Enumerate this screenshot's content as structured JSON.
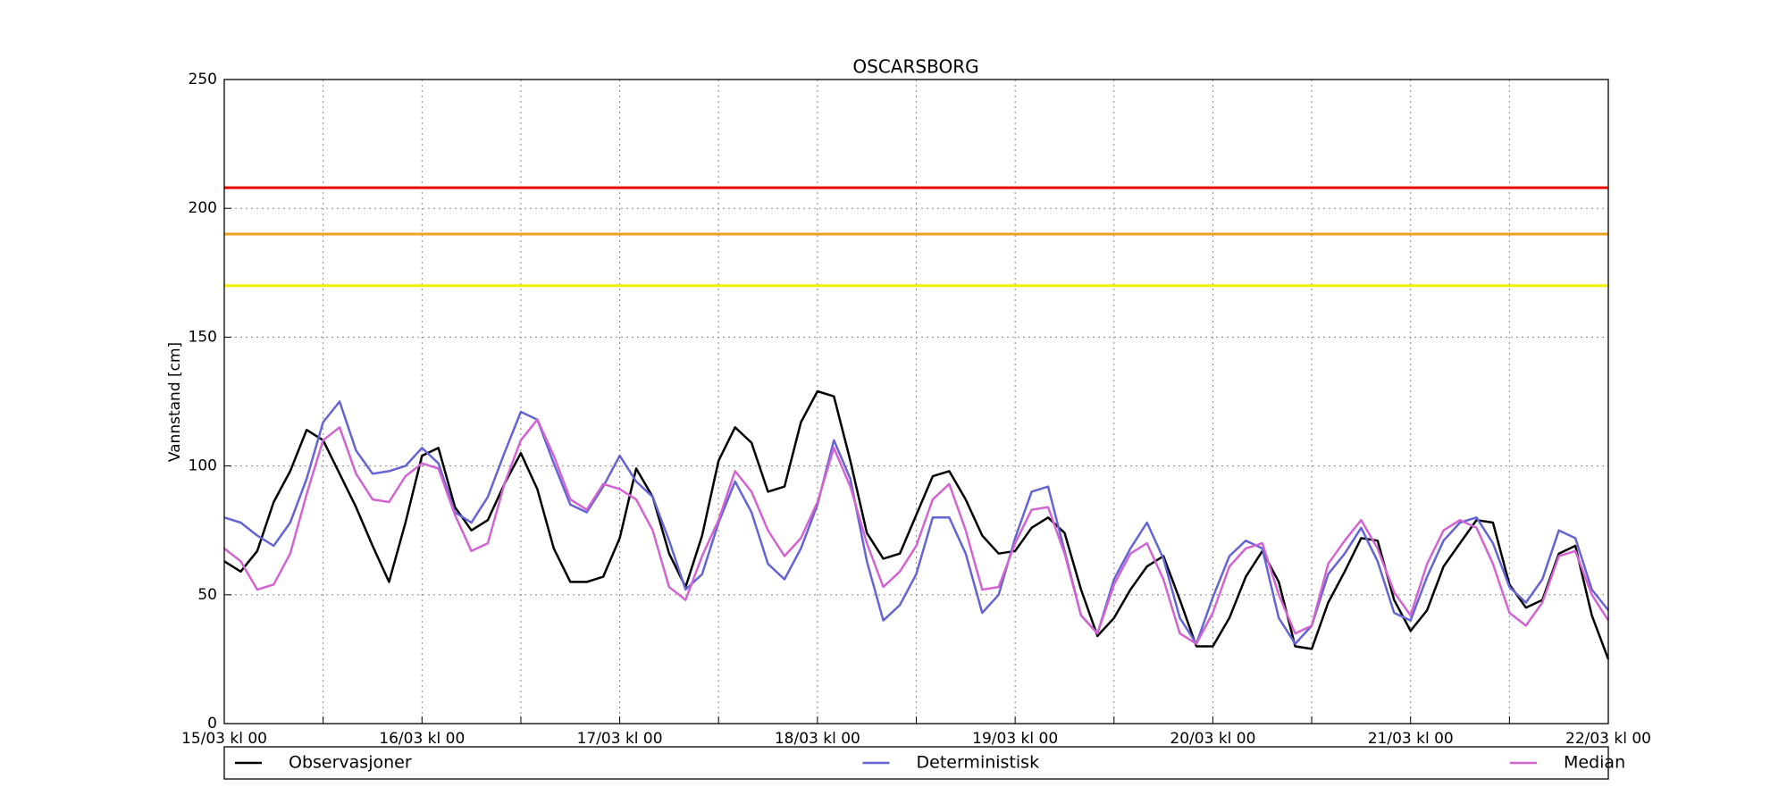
{
  "chart_data": {
    "type": "line",
    "title": "OSCARSBORG",
    "y_label": "Vannstand [cm]",
    "x": [
      0,
      2,
      4,
      6,
      8,
      10,
      12,
      14,
      16,
      18,
      20,
      22,
      24,
      26,
      28,
      30,
      32,
      34,
      36,
      38,
      40,
      42,
      44,
      46,
      48,
      50,
      52,
      54,
      56,
      58,
      60,
      62,
      64,
      66,
      68,
      70,
      72,
      74,
      76,
      78,
      80,
      82,
      84,
      86,
      88,
      90,
      92,
      94,
      96,
      98,
      100,
      102,
      104,
      106,
      108,
      110,
      112,
      114,
      116,
      118,
      120,
      122,
      124,
      126,
      128,
      130,
      132,
      134,
      136,
      138,
      140,
      142,
      144,
      146,
      148,
      150,
      152,
      154,
      156,
      158,
      160,
      162,
      164,
      166,
      168
    ],
    "series": [
      {
        "name": "Observasjoner",
        "color": "#000000",
        "values": [
          63,
          59,
          67,
          86,
          98,
          114,
          110,
          97,
          84,
          69,
          55,
          78,
          104,
          107,
          84,
          75,
          79,
          93,
          105,
          91,
          68,
          55,
          55,
          57,
          72,
          99,
          88,
          66,
          53,
          73,
          102,
          115,
          109,
          90,
          92,
          117,
          129,
          127,
          102,
          74,
          64,
          66,
          81,
          96,
          98,
          87,
          73,
          66,
          67,
          76,
          80,
          74,
          52,
          34,
          41,
          52,
          61,
          65,
          48,
          30,
          30,
          41,
          57,
          67,
          55,
          30,
          29,
          47,
          59,
          72,
          71,
          48,
          36,
          44,
          61,
          70,
          79,
          78,
          54,
          45,
          48,
          66,
          69,
          42,
          25
        ]
      },
      {
        "name": "Deterministisk",
        "color": "#6464d2",
        "values": [
          80,
          78,
          73,
          69,
          78,
          95,
          117,
          125,
          106,
          97,
          98,
          100,
          107,
          101,
          82,
          78,
          88,
          105,
          121,
          118,
          101,
          85,
          82,
          92,
          104,
          94,
          88,
          71,
          52,
          58,
          78,
          94,
          82,
          62,
          56,
          68,
          85,
          110,
          95,
          63,
          40,
          46,
          58,
          80,
          80,
          66,
          43,
          50,
          72,
          90,
          92,
          67,
          42,
          35,
          56,
          68,
          78,
          64,
          41,
          31,
          49,
          65,
          71,
          68,
          41,
          31,
          38,
          58,
          66,
          76,
          63,
          43,
          40,
          57,
          71,
          78,
          80,
          70,
          53,
          47,
          56,
          75,
          72,
          52,
          44
        ]
      },
      {
        "name": "Median",
        "color": "#d264d2",
        "values": [
          68,
          63,
          52,
          54,
          66,
          89,
          110,
          115,
          97,
          87,
          86,
          96,
          101,
          99,
          81,
          67,
          70,
          93,
          110,
          118,
          104,
          87,
          83,
          93,
          91,
          87,
          75,
          53,
          48,
          65,
          79,
          98,
          90,
          75,
          65,
          72,
          86,
          107,
          92,
          70,
          53,
          59,
          69,
          87,
          93,
          75,
          52,
          53,
          70,
          83,
          84,
          66,
          42,
          35,
          54,
          66,
          70,
          56,
          35,
          31,
          43,
          61,
          68,
          70,
          50,
          35,
          38,
          62,
          71,
          79,
          68,
          51,
          42,
          62,
          75,
          79,
          76,
          62,
          43,
          38,
          47,
          65,
          67,
          50,
          40
        ]
      }
    ],
    "thresholds": [
      {
        "value": 208,
        "color": "#e60000"
      },
      {
        "value": 190,
        "color": "#f0a020"
      },
      {
        "value": 170,
        "color": "#f0f000"
      }
    ],
    "xlim": [
      0,
      168
    ],
    "xticks": [
      {
        "value": 0,
        "label": "15/03 kl 00"
      },
      {
        "value": 24,
        "label": "16/03 kl 00"
      },
      {
        "value": 48,
        "label": "17/03 kl 00"
      },
      {
        "value": 72,
        "label": "18/03 kl 00"
      },
      {
        "value": 96,
        "label": "19/03 kl 00"
      },
      {
        "value": 120,
        "label": "20/03 kl 00"
      },
      {
        "value": 144,
        "label": "21/03 kl 00"
      },
      {
        "value": 168,
        "label": "22/03 kl 00"
      }
    ],
    "xminorticks": [
      12,
      36,
      60,
      84,
      108,
      132,
      156
    ],
    "ylim": [
      0,
      250
    ],
    "yticks": [
      0,
      50,
      100,
      150,
      200,
      250
    ],
    "grid": true,
    "legend": "below"
  }
}
